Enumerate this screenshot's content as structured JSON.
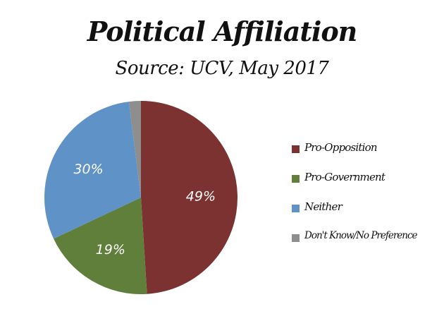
{
  "chart_data": {
    "type": "pie",
    "title": "Political Affiliation",
    "subtitle": "Source: UCV, May 2017",
    "slices": [
      {
        "name": "Pro-Opposition",
        "value": 49,
        "label": "49%",
        "color": "#7b3230"
      },
      {
        "name": "Pro-Government",
        "value": 19,
        "label": "19%",
        "color": "#5f7f3a"
      },
      {
        "name": "Neither",
        "value": 30,
        "label": "30%",
        "color": "#5f92c6"
      },
      {
        "name": "Don't Know/No Preference",
        "value": 2,
        "label": "",
        "color": "#8e8e8e"
      }
    ],
    "start_angle": "12 o'clock",
    "direction": "clockwise",
    "legend": "right"
  }
}
